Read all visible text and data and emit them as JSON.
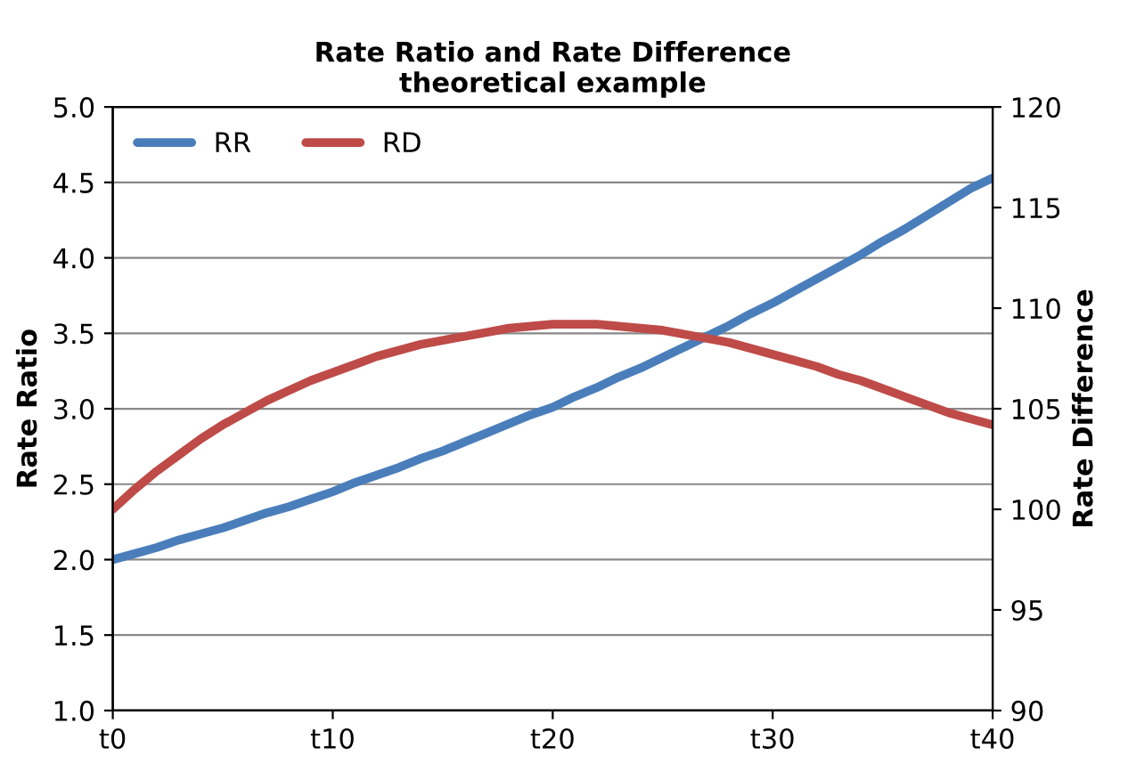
{
  "chart_data": {
    "type": "line",
    "title": "Rate Ratio and Rate Difference\ntheoretical example",
    "ylabel": "Rate Ratio",
    "y2label": "Rate Difference",
    "categories": [
      "t0",
      null,
      null,
      null,
      null,
      null,
      null,
      null,
      null,
      null,
      "t10",
      null,
      null,
      null,
      null,
      null,
      null,
      null,
      null,
      null,
      "t20",
      null,
      null,
      null,
      null,
      null,
      null,
      null,
      null,
      null,
      "t30",
      null,
      null,
      null,
      null,
      null,
      null,
      null,
      null,
      null,
      "t40"
    ],
    "series": [
      {
        "name": "RR",
        "color": "#4a7ebb",
        "values": [
          2.0,
          2.04,
          2.08,
          2.13,
          2.17,
          2.21,
          2.26,
          2.31,
          2.35,
          2.4,
          2.45,
          2.51,
          2.56,
          2.61,
          2.67,
          2.72,
          2.78,
          2.84,
          2.9,
          2.96,
          3.01,
          3.08,
          3.14,
          3.21,
          3.27,
          3.34,
          3.41,
          3.48,
          3.55,
          3.63,
          3.7,
          3.78,
          3.86,
          3.94,
          4.02,
          4.11,
          4.19,
          4.28,
          4.37,
          4.46,
          4.53
        ]
      },
      {
        "name": "RD",
        "color": "#be4b48",
        "axis": "y2",
        "values": [
          100.0,
          101.0,
          101.9,
          102.7,
          103.5,
          104.2,
          104.8,
          105.4,
          105.9,
          106.4,
          106.8,
          107.2,
          107.6,
          107.9,
          108.2,
          108.4,
          108.6,
          108.8,
          109.0,
          109.1,
          109.2,
          109.2,
          109.2,
          109.1,
          109.0,
          108.9,
          108.7,
          108.5,
          108.3,
          108.0,
          107.7,
          107.4,
          107.1,
          106.7,
          106.4,
          106.0,
          105.6,
          105.2,
          104.8,
          104.5,
          104.2
        ]
      }
    ],
    "ylim": [
      1.0,
      5.0
    ],
    "yticks": [
      {
        "value": 1,
        "label": "1.0"
      },
      {
        "value": 1.5,
        "label": "1.5"
      },
      {
        "value": 2,
        "label": "2.0"
      },
      {
        "value": 2.5,
        "label": "2.5"
      },
      {
        "value": 3,
        "label": "3.0"
      },
      {
        "value": 3.5,
        "label": "3.5"
      },
      {
        "value": 4,
        "label": "4.0"
      },
      {
        "value": 4.5,
        "label": "4.5"
      },
      {
        "value": 5,
        "label": "5.0"
      }
    ],
    "y2lim": [
      90,
      120
    ],
    "y2ticks": [
      90,
      95,
      100,
      105,
      110,
      115,
      120
    ],
    "grid": "y",
    "legend": "top left",
    "marker": "none",
    "line_style": "solid"
  }
}
